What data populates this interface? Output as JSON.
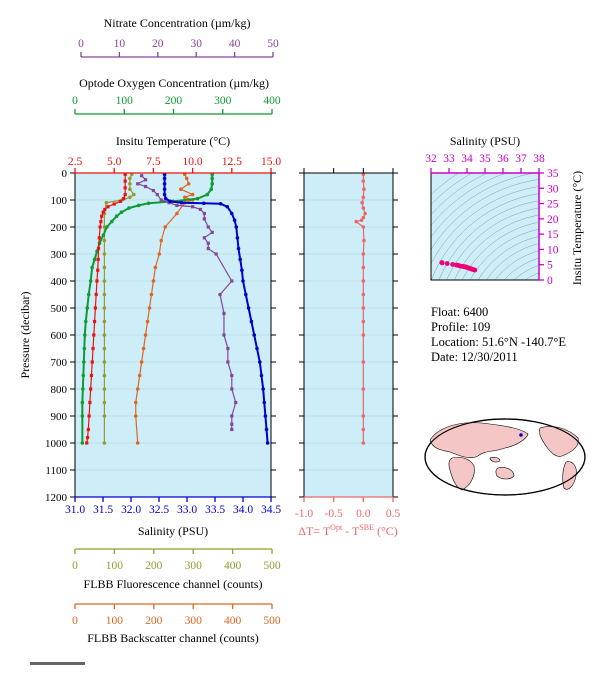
{
  "colors": {
    "salinity": "#0000cc",
    "temperature": "#ee1111",
    "oxygen": "#119933",
    "nitrate": "#884499",
    "fluorescence": "#999933",
    "backscatter": "#dd6622",
    "deltaT": "#ee6666",
    "ts_axis": "#cc00cc",
    "panel_bg": "#cdeef8",
    "land": "#f4c6c6"
  },
  "info": {
    "float": "Float:  6400",
    "profile": "Profile:  109",
    "location": "Location:  51.6°N  -140.7°E",
    "date": "Date:  12/30/2011"
  },
  "chart_data": [
    {
      "type": "line",
      "title": "",
      "ylabel": "Pressure (decibar)",
      "ylim": [
        0,
        1200
      ],
      "yticks": [
        "0",
        "100",
        "200",
        "300",
        "400",
        "500",
        "600",
        "700",
        "800",
        "900",
        "1000",
        "1100",
        "1200"
      ],
      "axes": {
        "salinity": {
          "label": "Salinity (PSU)",
          "range": [
            31.0,
            34.5
          ],
          "ticks": [
            "31.0",
            "31.5",
            "32.0",
            "32.5",
            "33.0",
            "33.5",
            "34.0",
            "34.5"
          ]
        },
        "temperature": {
          "label": "Insitu Temperature (°C)",
          "range": [
            2.5,
            15.0
          ],
          "ticks": [
            "2.5",
            "5.0",
            "7.5",
            "10.0",
            "12.5",
            "15.0"
          ]
        },
        "nitrate": {
          "label": "Nitrate Concentration (µm/kg)",
          "range": [
            0,
            50
          ],
          "ticks": [
            "0",
            "10",
            "20",
            "30",
            "40",
            "50"
          ]
        },
        "oxygen": {
          "label": "Optode Oxygen Concentration (µm/kg)",
          "range": [
            0,
            400
          ],
          "ticks": [
            "0",
            "100",
            "200",
            "300",
            "400"
          ]
        },
        "fluorescence": {
          "label": "FLBB Fluorescence channel (counts)",
          "range": [
            0,
            500
          ],
          "ticks": [
            "0",
            "100",
            "200",
            "300",
            "400",
            "500"
          ]
        },
        "backscatter": {
          "label": "FLBB Backscatter channel (counts)",
          "range": [
            0,
            500
          ],
          "ticks": [
            "0",
            "100",
            "200",
            "300",
            "400",
            "500"
          ]
        }
      },
      "series": [
        {
          "key": "salinity",
          "x": [
            32.6,
            32.6,
            32.6,
            32.6,
            32.6,
            32.62,
            32.7,
            32.9,
            33.3,
            33.6,
            33.72,
            33.8,
            33.85,
            33.88,
            33.9,
            33.92,
            33.95,
            33.98,
            34.0,
            34.05,
            34.1,
            34.15,
            34.2,
            34.25,
            34.3,
            34.33,
            34.36,
            34.38,
            34.4,
            34.42,
            34.44
          ],
          "y": [
            5,
            20,
            40,
            60,
            80,
            95,
            105,
            110,
            112,
            114,
            125,
            150,
            175,
            200,
            240,
            280,
            320,
            360,
            400,
            450,
            500,
            550,
            600,
            650,
            700,
            750,
            800,
            850,
            900,
            950,
            1000
          ]
        },
        {
          "key": "temperature",
          "x": [
            5.7,
            5.7,
            5.7,
            5.7,
            5.6,
            5.4,
            5.0,
            4.6,
            4.4,
            4.3,
            4.2,
            4.15,
            4.1,
            4.05,
            4.0,
            3.98,
            3.95,
            3.9,
            3.85,
            3.8,
            3.75,
            3.7,
            3.65,
            3.6,
            3.55,
            3.5,
            3.45,
            3.4,
            3.35,
            3.3,
            3.25
          ],
          "y": [
            5,
            30,
            55,
            80,
            95,
            105,
            115,
            125,
            135,
            145,
            160,
            180,
            200,
            240,
            280,
            320,
            360,
            400,
            450,
            500,
            550,
            600,
            650,
            700,
            750,
            800,
            850,
            900,
            950,
            980,
            1000
          ]
        },
        {
          "key": "oxygen",
          "x": [
            280,
            280,
            280,
            278,
            270,
            250,
            200,
            150,
            130,
            110,
            95,
            85,
            75,
            65,
            58,
            50,
            45,
            40,
            35,
            32,
            28,
            25,
            22,
            20,
            19,
            18,
            17,
            16,
            15,
            15,
            15
          ],
          "y": [
            5,
            20,
            40,
            60,
            80,
            95,
            105,
            112,
            120,
            130,
            145,
            160,
            180,
            200,
            230,
            260,
            290,
            320,
            350,
            400,
            450,
            500,
            550,
            600,
            650,
            700,
            750,
            800,
            850,
            900,
            1000
          ]
        },
        {
          "key": "nitrate",
          "x": [
            17,
            18,
            16,
            18,
            20,
            21,
            22,
            24,
            26,
            30,
            32,
            33,
            33,
            34,
            35,
            33,
            34,
            34,
            36,
            40,
            37,
            38,
            38,
            39,
            39,
            40,
            40,
            41,
            40,
            40,
            40
          ],
          "y": [
            10,
            25,
            40,
            50,
            65,
            80,
            100,
            110,
            120,
            125,
            135,
            150,
            170,
            200,
            220,
            240,
            260,
            280,
            300,
            400,
            450,
            520,
            600,
            650,
            700,
            750,
            800,
            850,
            900,
            930,
            950
          ]
        },
        {
          "key": "fluorescence",
          "x": [
            145,
            140,
            140,
            140,
            150,
            140,
            120,
            80,
            75,
            75,
            75,
            75,
            75,
            75,
            75,
            75,
            75,
            75,
            75,
            75,
            75,
            75,
            75,
            75,
            75
          ],
          "y": [
            5,
            20,
            40,
            60,
            80,
            90,
            100,
            110,
            150,
            200,
            250,
            300,
            350,
            400,
            450,
            500,
            550,
            600,
            650,
            700,
            750,
            800,
            850,
            900,
            1000
          ]
        },
        {
          "key": "backscatter",
          "x": [
            280,
            285,
            290,
            270,
            300,
            280,
            300,
            280,
            260,
            230,
            220,
            215,
            205,
            200,
            195,
            190,
            185,
            180,
            175,
            170,
            165,
            160,
            155,
            155,
            160
          ],
          "y": [
            5,
            20,
            40,
            60,
            80,
            90,
            100,
            110,
            150,
            200,
            250,
            300,
            350,
            400,
            450,
            500,
            550,
            600,
            650,
            700,
            750,
            800,
            850,
            900,
            1000
          ]
        }
      ]
    },
    {
      "type": "line",
      "xlabel": "ΔT= T^Opt - T^SBE (°C)",
      "xlim": [
        -1.0,
        0.5
      ],
      "xticks": [
        "-1.0",
        "-0.5",
        "0.0",
        "0.5"
      ],
      "ylim": [
        0,
        1200
      ],
      "series": [
        {
          "name": "",
          "x": [
            0.0,
            0.0,
            0.01,
            0.0,
            -0.02,
            0.0,
            0.03,
            0.0,
            -0.03,
            -0.12,
            0.0,
            0.01,
            0.0,
            0.0,
            0.0,
            0.0,
            0.0,
            0.0,
            0.0,
            0.0,
            0.0,
            0.0,
            0.0,
            0.0
          ],
          "y": [
            5,
            30,
            60,
            90,
            110,
            130,
            150,
            165,
            175,
            180,
            200,
            250,
            300,
            350,
            400,
            450,
            500,
            550,
            600,
            700,
            800,
            900,
            950,
            1000
          ]
        }
      ]
    },
    {
      "type": "scatter",
      "xlabel": "Salinity (PSU)",
      "ylabel": "Insitu Temperature (°C)",
      "xlim": [
        32,
        38
      ],
      "ylim": [
        0,
        35
      ],
      "xticks": [
        "32",
        "33",
        "34",
        "35",
        "36",
        "37",
        "38"
      ],
      "yticks": [
        "0",
        "5",
        "10",
        "15",
        "20",
        "25",
        "30",
        "35"
      ],
      "series": [
        {
          "name": "",
          "x": [
            32.6,
            32.62,
            32.9,
            33.2,
            33.4,
            33.5,
            33.6,
            33.7,
            33.8,
            33.85,
            33.9,
            33.95,
            34.0,
            34.05,
            34.1,
            34.15,
            34.2,
            34.25,
            34.3,
            34.35,
            34.4,
            34.44
          ],
          "y": [
            5.7,
            5.6,
            5.4,
            5.1,
            4.9,
            4.8,
            4.6,
            4.5,
            4.4,
            4.35,
            4.3,
            4.25,
            4.1,
            4.0,
            3.9,
            3.8,
            3.7,
            3.6,
            3.5,
            3.4,
            3.3,
            3.25
          ]
        }
      ]
    }
  ]
}
